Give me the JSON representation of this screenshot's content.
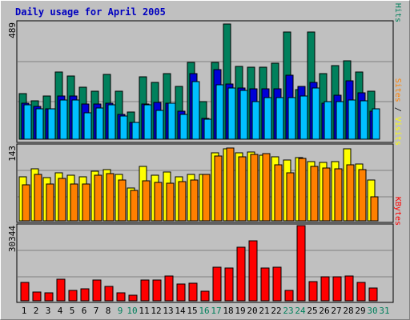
{
  "colors": {
    "background": "#c0c0c0",
    "title": "#0000c0",
    "hits": "#00805c",
    "files": "#0000d8",
    "pages": "#00c0ff",
    "visits": "#ffff00",
    "sites": "#ff8000",
    "kbytes": "#ff0000",
    "weekend_day": "#00805c",
    "weekday": "#000000"
  },
  "chart_data": {
    "type": "bar",
    "title": "Daily usage for April 2005",
    "categories": [
      "1",
      "2",
      "3",
      "4",
      "5",
      "6",
      "7",
      "8",
      "9",
      "10",
      "11",
      "12",
      "13",
      "14",
      "15",
      "16",
      "17",
      "18",
      "19",
      "20",
      "21",
      "22",
      "23",
      "24",
      "25",
      "26",
      "27",
      "28",
      "29",
      "30",
      "31"
    ],
    "weekend_days": [
      "9",
      "10",
      "16",
      "17",
      "23",
      "24",
      "30",
      "31"
    ],
    "panels": [
      {
        "id": "hits_files_pages",
        "max_label": "489",
        "ymax": 489,
        "legend": [
          {
            "text": "Pages",
            "color_key": "pages"
          },
          {
            "text": " / ",
            "color_key": "weekday"
          },
          {
            "text": "Files",
            "color_key": "files"
          },
          {
            "text": " / ",
            "color_key": "weekday"
          },
          {
            "text": "Hits",
            "color_key": "hits"
          }
        ],
        "series": [
          {
            "name": "Hits",
            "color_key": "hits",
            "values": [
              190,
              160,
              180,
              282,
              264,
              218,
              200,
              270,
              202,
              115,
              262,
              237,
              273,
              220,
              320,
              158,
              320,
              482,
              305,
              300,
              303,
              318,
              450,
              208,
              450,
              273,
              308,
              327,
              280,
              200,
              0
            ]
          },
          {
            "name": "Files",
            "color_key": "files",
            "values": [
              152,
              136,
              128,
              180,
              182,
              148,
              146,
              152,
              105,
              71,
              148,
              155,
              152,
              117,
              273,
              88,
              290,
              230,
              213,
              210,
              212,
              210,
              268,
              220,
              238,
              150,
              185,
              243,
              193,
              118,
              0
            ]
          },
          {
            "name": "Pages",
            "color_key": "pages",
            "values": [
              143,
              128,
              128,
              163,
              165,
              110,
              132,
              143,
              98,
              70,
              143,
              122,
              152,
              105,
              240,
              84,
              227,
              213,
              205,
              158,
              173,
              173,
              173,
              180,
              213,
              157,
              157,
              163,
              160,
              128,
              0
            ]
          }
        ]
      },
      {
        "id": "visits_sites",
        "max_label": "143",
        "ymax": 143,
        "legend": [
          {
            "text": "Sites",
            "color_key": "sites"
          },
          {
            "text": " / ",
            "color_key": "weekday"
          },
          {
            "text": "Visits",
            "color_key": "visits"
          }
        ],
        "series": [
          {
            "name": "Visits",
            "color_key": "visits",
            "values": [
              84,
              99,
              82,
              92,
              86,
              83,
              95,
              97,
              88,
              62,
              104,
              87,
              93,
              83,
              88,
              88,
              130,
              137,
              130,
              131,
              125,
              121,
              115,
              120,
              113,
              111,
              112,
              137,
              108,
              77,
              0
            ]
          },
          {
            "name": "Sites",
            "color_key": "sites",
            "values": [
              68,
              88,
              70,
              80,
              70,
              70,
              87,
              89,
              77,
              58,
              76,
              73,
              71,
              75,
              78,
              88,
              123,
              138,
              121,
              126,
              128,
              106,
              91,
              119,
              103,
              101,
              99,
              107,
              98,
              46,
              0
            ]
          }
        ]
      },
      {
        "id": "kbytes",
        "max_label": "30344",
        "ymax": 30344,
        "legend": [
          {
            "text": "KBytes",
            "color_key": "kbytes"
          }
        ],
        "series": [
          {
            "name": "KBytes",
            "color_key": "kbytes",
            "values": [
              7400,
              3700,
              3200,
              8600,
              4200,
              4700,
              8400,
              5800,
              3100,
              2400,
              8400,
              8400,
              10000,
              6800,
              7200,
              3900,
              13500,
              13100,
              21700,
              24100,
              13100,
              13500,
              4200,
              30344,
              7800,
              9800,
              9800,
              10000,
              7400,
              5100,
              0
            ]
          }
        ]
      }
    ]
  }
}
